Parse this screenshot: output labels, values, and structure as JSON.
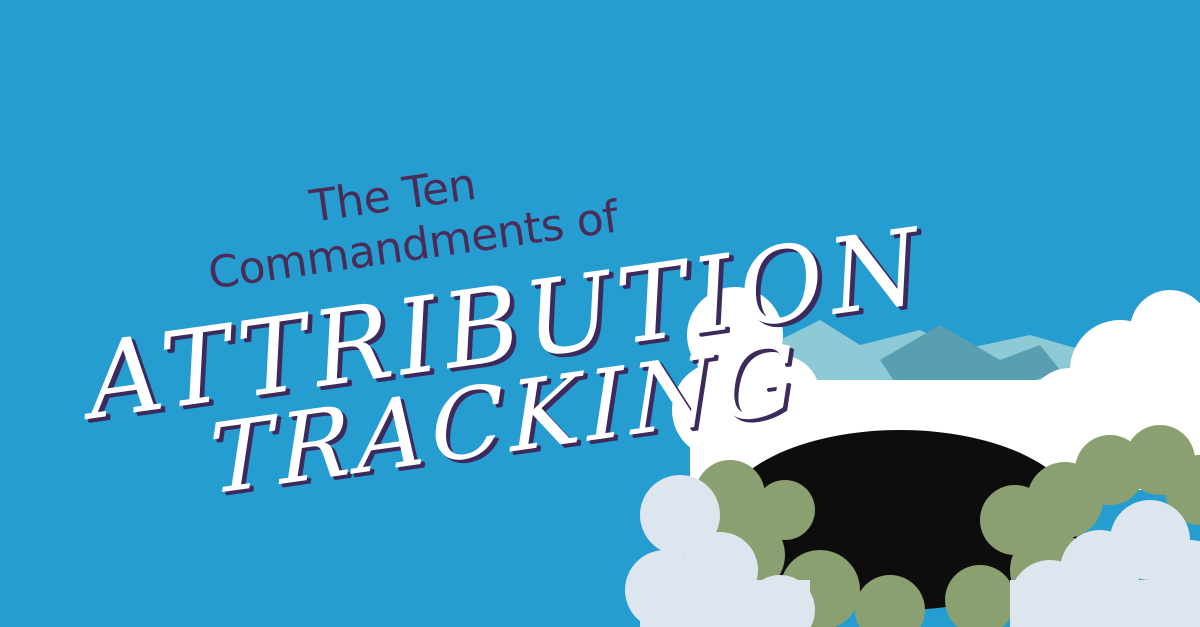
{
  "title": {
    "line1": "The Ten",
    "line2": "Commandments of",
    "line3": "ATTRIBUTION",
    "line4": "TRACKING"
  },
  "colors": {
    "background": "#259dd1",
    "subtitle_text": "#4b2c56",
    "script_text": "#ffffff",
    "script_shadow": "#3d2a5c",
    "cloud_white": "#ffffff",
    "cloud_grey": "#dde6ee",
    "mountain_light": "#8ec9d6",
    "mountain_dark": "#5a9fb1",
    "bush_green": "#8ba070",
    "crater_black": "#0d0d0d"
  }
}
